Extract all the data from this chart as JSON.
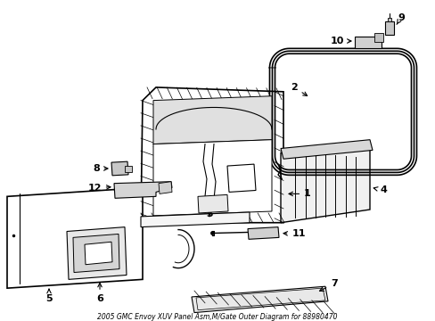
{
  "title": "2005 GMC Envoy XUV Panel Asm,M/Gate Outer Diagram for 88980470",
  "background_color": "#ffffff",
  "line_color": "#000000",
  "label_color": "#000000",
  "fig_width": 4.89,
  "fig_height": 3.6,
  "dpi": 100
}
